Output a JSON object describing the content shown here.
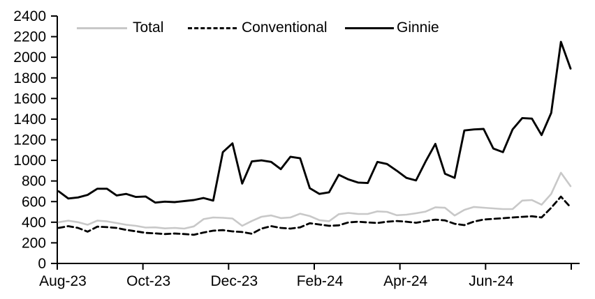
{
  "chart_data": {
    "type": "line",
    "title": "",
    "xlabel": "",
    "ylabel": "",
    "x_unit": "week",
    "x_tick_labels": [
      "Aug-23",
      "Oct-23",
      "Dec-23",
      "Feb-24",
      "Apr-24",
      "Jun-24"
    ],
    "y_ticks": [
      2400,
      2200,
      2000,
      1800,
      1600,
      1400,
      1200,
      1000,
      800,
      600,
      400,
      200,
      0
    ],
    "ylim": [
      0,
      2400
    ],
    "grid": false,
    "legend_position": "top",
    "axis_color": "#000000",
    "series": [
      {
        "name": "Total",
        "color": "#c8c8c8",
        "style": "solid",
        "values": [
          400,
          415,
          400,
          375,
          415,
          408,
          392,
          375,
          365,
          348,
          350,
          340,
          345,
          338,
          360,
          430,
          446,
          443,
          436,
          365,
          412,
          453,
          466,
          440,
          446,
          483,
          460,
          420,
          410,
          478,
          490,
          480,
          480,
          505,
          500,
          468,
          473,
          487,
          503,
          545,
          540,
          465,
          520,
          548,
          541,
          534,
          527,
          527,
          610,
          615,
          570,
          675,
          880,
          750
        ]
      },
      {
        "name": "Conventional",
        "color": "#000000",
        "style": "dashed",
        "values": [
          345,
          362,
          345,
          308,
          357,
          352,
          345,
          325,
          312,
          297,
          292,
          285,
          291,
          285,
          278,
          300,
          318,
          323,
          311,
          305,
          288,
          338,
          362,
          345,
          338,
          350,
          390,
          378,
          365,
          370,
          398,
          405,
          398,
          392,
          405,
          412,
          405,
          395,
          410,
          425,
          418,
          385,
          372,
          406,
          426,
          433,
          439,
          446,
          452,
          458,
          446,
          540,
          648,
          545
        ]
      },
      {
        "name": "Ginnie",
        "color": "#000000",
        "style": "solid",
        "values": [
          700,
          630,
          640,
          665,
          725,
          725,
          660,
          675,
          645,
          650,
          590,
          600,
          595,
          605,
          615,
          635,
          610,
          1080,
          1165,
          775,
          990,
          1000,
          985,
          915,
          1035,
          1020,
          730,
          675,
          690,
          860,
          815,
          785,
          780,
          985,
          965,
          900,
          830,
          805,
          990,
          1160,
          870,
          830,
          1290,
          1300,
          1305,
          1115,
          1080,
          1300,
          1410,
          1405,
          1245,
          1460,
          2150,
          1890
        ]
      }
    ]
  }
}
